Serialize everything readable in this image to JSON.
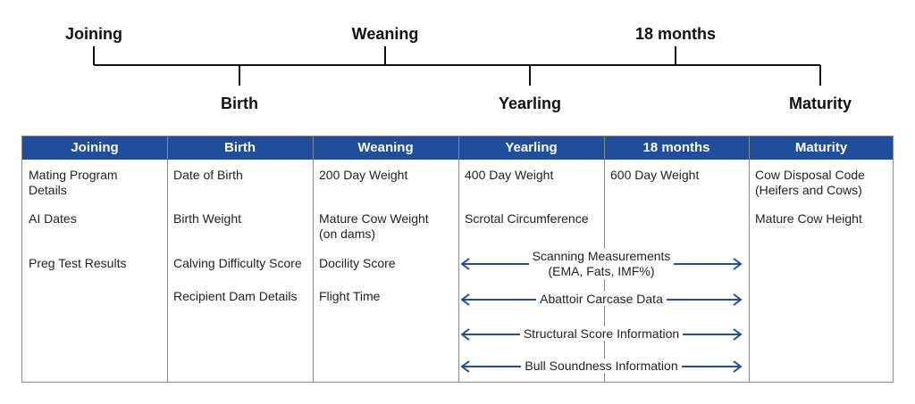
{
  "timeline": {
    "top_labels": [
      "Joining",
      "Weaning",
      "18 months"
    ],
    "bottom_labels": [
      "Birth",
      "Yearling",
      "Maturity"
    ]
  },
  "table": {
    "headers": [
      "Joining",
      "Birth",
      "Weaning",
      "Yearling",
      "18 months",
      "Maturity"
    ],
    "columns": [
      [
        "Mating Program\nDetails",
        "AI Dates",
        "Preg Test Results"
      ],
      [
        "Date of Birth",
        "Birth Weight",
        "Calving Difficulty Score",
        "Recipient Dam Details"
      ],
      [
        "200 Day Weight",
        "Mature Cow Weight\n(on dams)",
        "Docility Score",
        "Flight Time"
      ],
      [
        "400 Day Weight",
        "Scrotal Circumference"
      ],
      [
        "600 Day Weight"
      ],
      [
        "Cow Disposal Code\n(Heifers and Cows)",
        "Mature Cow Height"
      ]
    ],
    "spanning": [
      "Scanning Measurements\n(EMA, Fats, IMF%)",
      "Abattoir Carcase Data",
      "Structural Score Information",
      "Bull Soundness Information"
    ]
  },
  "colors": {
    "header_bg": "#1f4e9c",
    "header_text": "#ffffff",
    "arrow": "#1f4e9c",
    "border": "#8a8a8a"
  }
}
